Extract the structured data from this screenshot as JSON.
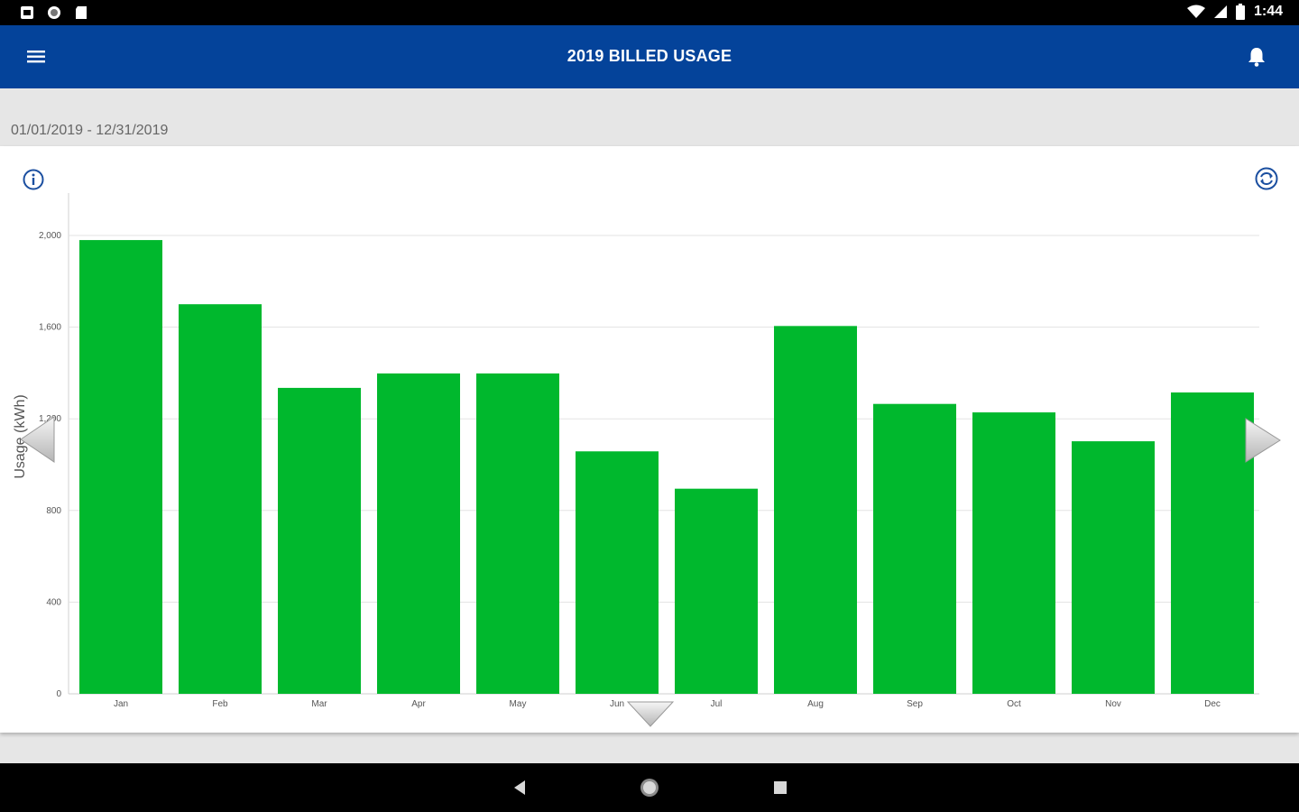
{
  "status_bar": {
    "time": "1:44",
    "left_icons": [
      "notification-icon",
      "sync-status-icon",
      "sd-card-icon"
    ],
    "right_icons": [
      "wifi-icon",
      "signal-icon",
      "battery-icon"
    ]
  },
  "app_bar": {
    "title": "2019 BILLED USAGE",
    "menu_icon": "hamburger-menu-icon",
    "bell_icon": "bell-icon",
    "color": "#04439a"
  },
  "subheader": {
    "date_range": "01/01/2019 - 12/31/2019"
  },
  "card": {
    "info_icon": "info-icon",
    "sync_icon": "refresh-icon"
  },
  "chart_data": {
    "type": "bar",
    "categories": [
      "Jan",
      "Feb",
      "Mar",
      "Apr",
      "May",
      "Jun",
      "Jul",
      "Aug",
      "Sep",
      "Oct",
      "Nov",
      "Dec"
    ],
    "values": [
      1980,
      1700,
      1335,
      1398,
      1398,
      1058,
      895,
      1605,
      1265,
      1228,
      1102,
      1315
    ],
    "ylabel": "Usage (kWh)",
    "yticks": [
      "0",
      "400",
      "800",
      "1,200",
      "1,600",
      "2,000"
    ],
    "ylim": [
      0,
      2200
    ],
    "bar_color": "#00b82d",
    "grid": true
  },
  "nav_bar": {
    "icons": [
      "back-icon",
      "home-icon",
      "recent-apps-icon"
    ]
  }
}
